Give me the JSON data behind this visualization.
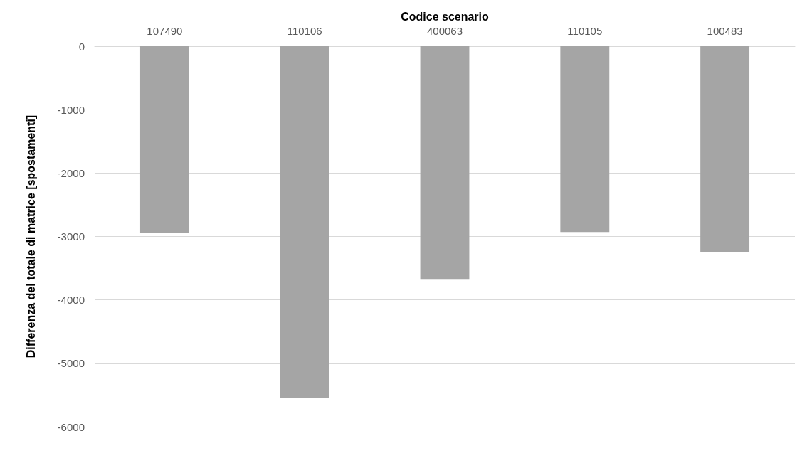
{
  "chart_data": {
    "type": "bar",
    "xlabel": "Codice scenario",
    "ylabel": "Differenza del totale di matrice [spostamenti]",
    "categories": [
      "107490",
      "110106",
      "400063",
      "110105",
      "100483"
    ],
    "values": [
      -2950,
      -5540,
      -3680,
      -2930,
      -3240
    ],
    "color": "#a5a5a5",
    "ylim": [
      -6000,
      0
    ],
    "yticks": [
      -6000,
      -5000,
      -4000,
      -3000,
      -2000,
      -1000,
      0
    ],
    "grid": "y"
  }
}
